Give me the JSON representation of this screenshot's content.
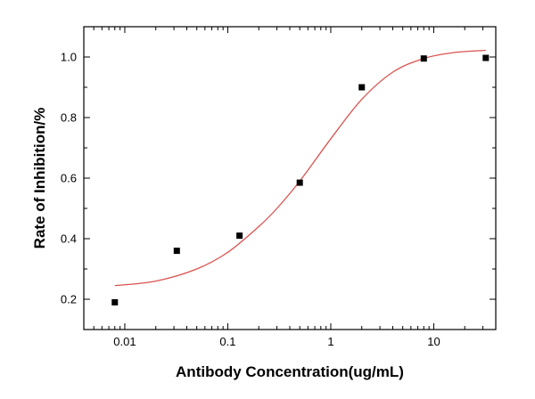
{
  "chart_data": {
    "type": "scatter",
    "title": "",
    "xlabel": "Antibody Concentration(ug/mL)",
    "ylabel": "Rate of Inhibition/%",
    "x_scale": "log",
    "xlim": [
      0.004,
      40
    ],
    "ylim": [
      0.1,
      1.1
    ],
    "x_ticks": [
      0.01,
      0.1,
      1,
      10
    ],
    "x_tick_labels": [
      "0.01",
      "0.1",
      "1",
      "10"
    ],
    "y_ticks": [
      0.2,
      0.4,
      0.6,
      0.8,
      1.0
    ],
    "y_tick_labels": [
      "0.2",
      "0.4",
      "0.6",
      "0.8",
      "1.0"
    ],
    "grid": false,
    "legend": "none",
    "series": [
      {
        "kind": "points",
        "color": "#000000",
        "x": [
          0.008,
          0.032,
          0.13,
          0.5,
          2.0,
          8.0,
          32.0
        ],
        "y": [
          0.19,
          0.36,
          0.41,
          0.585,
          0.9,
          0.995,
          0.997
        ]
      },
      {
        "kind": "fit",
        "color": "#d9534f",
        "x": [
          0.008,
          0.02,
          0.05,
          0.1,
          0.2,
          0.3,
          0.5,
          1.0,
          2.0,
          4.0,
          8.0,
          16.0,
          32.0
        ],
        "y": [
          0.245,
          0.26,
          0.3,
          0.355,
          0.44,
          0.5,
          0.59,
          0.73,
          0.86,
          0.95,
          0.995,
          1.015,
          1.022
        ]
      }
    ]
  }
}
